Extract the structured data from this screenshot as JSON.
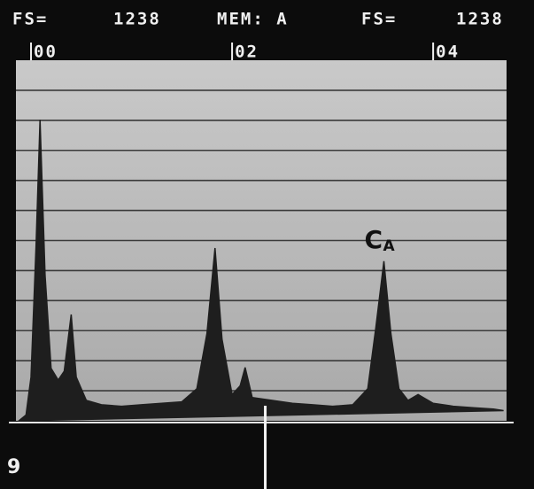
{
  "chart_data": {
    "type": "line",
    "header": {
      "fs_label_left": "FS=",
      "fs_left": "1238",
      "memory": "MEM: A",
      "fs_label_right": "FS=",
      "fs_right": "1238"
    },
    "x": [
      -0.12,
      -0.05,
      0.0,
      0.05,
      0.09,
      0.14,
      0.2,
      0.27,
      0.33,
      0.4,
      0.45,
      0.55,
      0.7,
      0.9,
      1.1,
      1.3,
      1.5,
      1.65,
      1.75,
      1.83,
      1.9,
      2.0,
      2.08,
      2.13,
      2.2,
      2.4,
      2.6,
      2.8,
      3.0,
      3.2,
      3.35,
      3.43,
      3.51,
      3.58,
      3.66,
      3.75,
      3.85,
      4.0,
      4.2,
      4.4,
      4.6,
      4.7
    ],
    "values": [
      0,
      20,
      150,
      600,
      1034,
      500,
      180,
      140,
      170,
      365,
      150,
      70,
      55,
      50,
      55,
      60,
      65,
      110,
      300,
      593,
      280,
      90,
      120,
      183,
      80,
      70,
      60,
      55,
      50,
      55,
      110,
      320,
      548,
      300,
      110,
      70,
      90,
      60,
      50,
      45,
      40,
      35
    ],
    "color": "#1e1e1e",
    "xlim": [
      -0.15,
      4.73
    ],
    "ylim": [
      0,
      1238
    ],
    "xticks": [
      {
        "value": 0,
        "label": "00"
      },
      {
        "value": 2,
        "label": "02"
      },
      {
        "value": 4,
        "label": "04"
      }
    ],
    "grid_lines": 11,
    "cursor": 2.33,
    "annotation": {
      "text": "C",
      "sub": "A",
      "x": 3.51
    },
    "figure_label": "9"
  }
}
